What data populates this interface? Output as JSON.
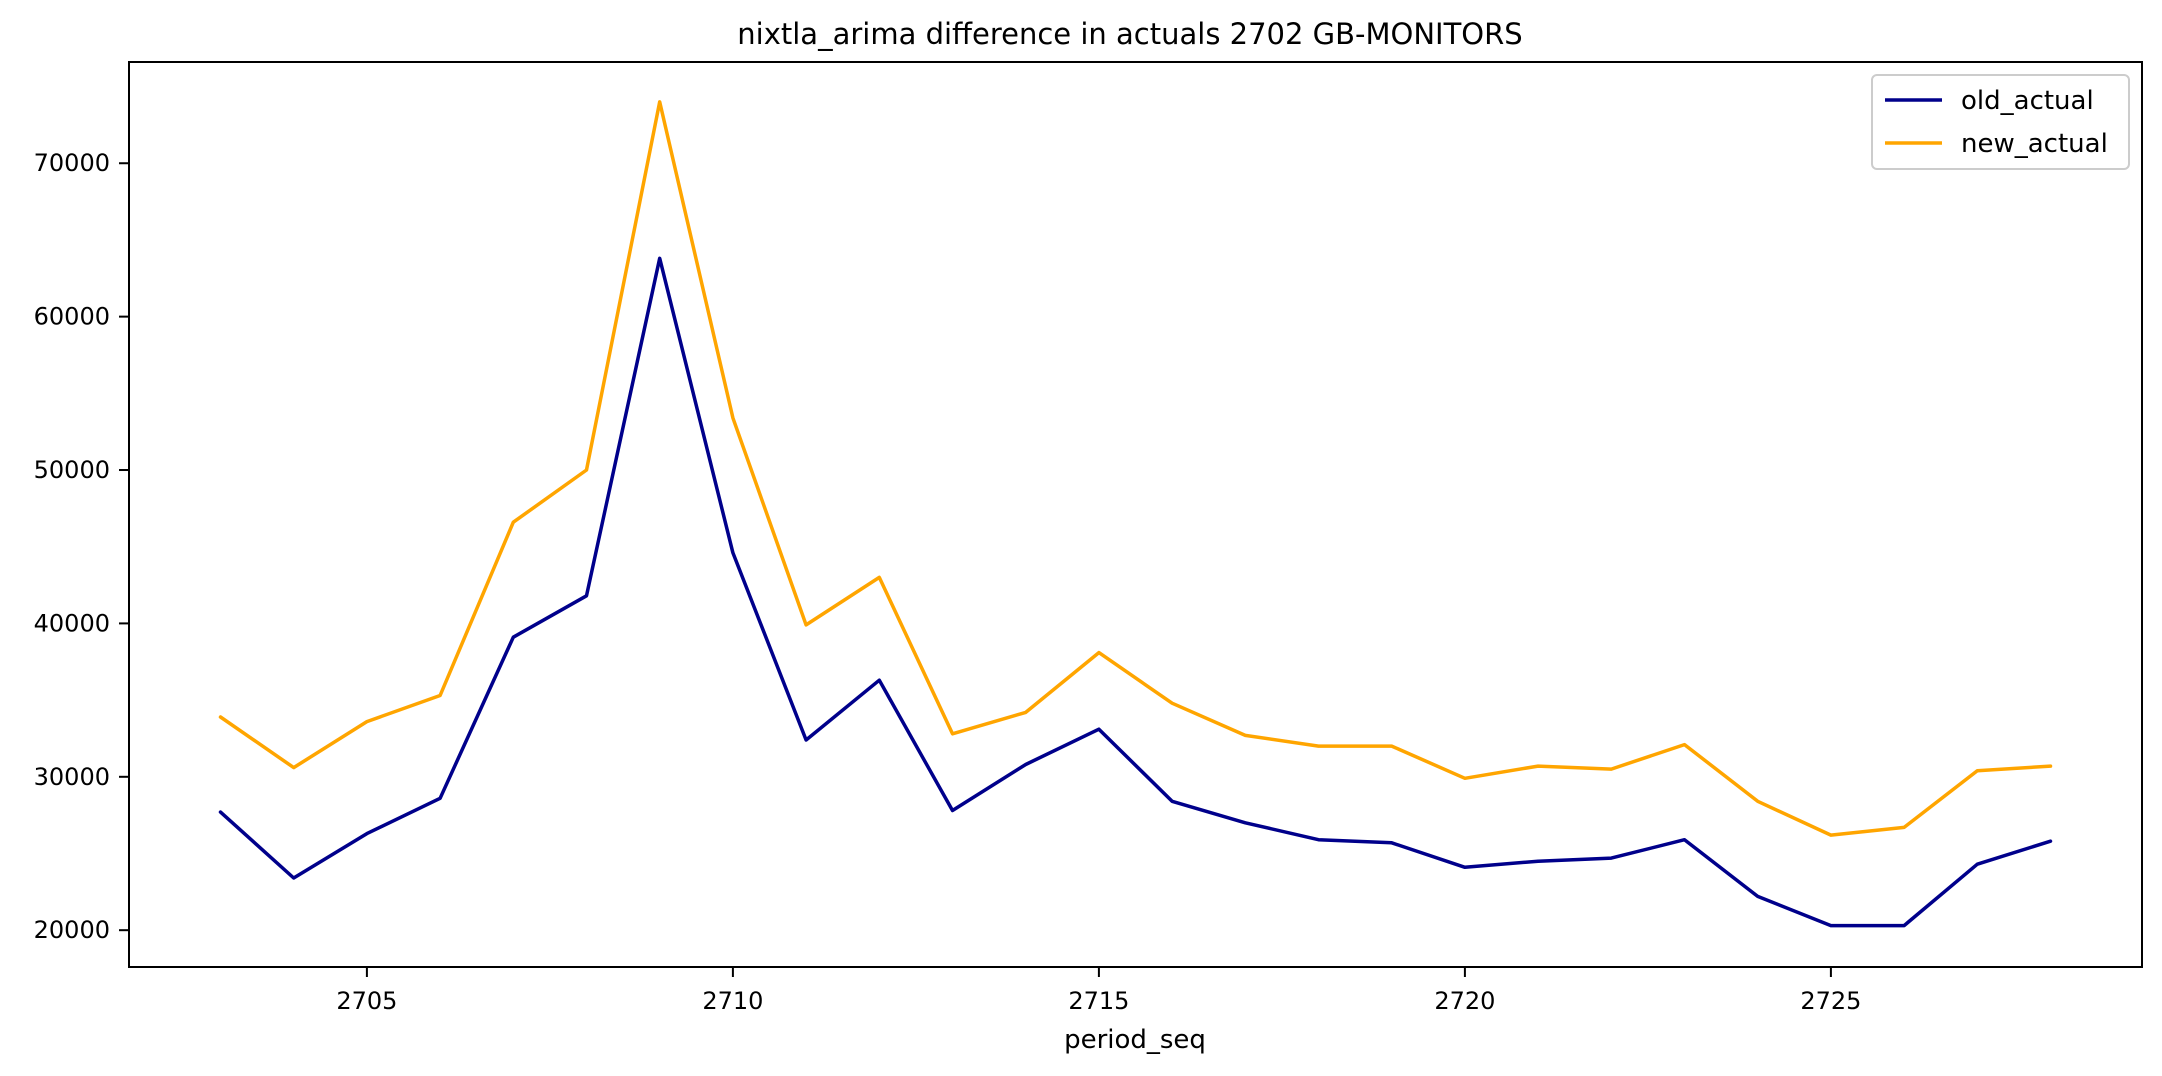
{
  "chart_data": {
    "type": "line",
    "title": "nixtla_arima difference in actuals 2702 GB-MONITORS",
    "xlabel": "period_seq",
    "ylabel": "",
    "x": [
      2703,
      2704,
      2705,
      2706,
      2707,
      2708,
      2709,
      2710,
      2711,
      2712,
      2713,
      2714,
      2715,
      2716,
      2717,
      2718,
      2719,
      2720,
      2721,
      2722,
      2723,
      2724,
      2725,
      2726,
      2727,
      2728
    ],
    "xlim": [
      2701.75,
      2729.25
    ],
    "ylim": [
      17600,
      76600
    ],
    "xticks": [
      2705,
      2710,
      2715,
      2720,
      2725
    ],
    "yticks": [
      20000,
      30000,
      40000,
      50000,
      60000,
      70000
    ],
    "legend_position": "top-right",
    "grid": false,
    "series": [
      {
        "name": "old_actual",
        "color": "#00008b",
        "values": [
          27700,
          23400,
          26300,
          28600,
          39100,
          41800,
          63800,
          44600,
          32400,
          36300,
          27800,
          30800,
          33100,
          28400,
          27000,
          25900,
          25700,
          24100,
          24500,
          24700,
          25900,
          22200,
          20300,
          20300,
          24300,
          25800
        ]
      },
      {
        "name": "new_actual",
        "color": "#ffa500",
        "values": [
          33900,
          30600,
          33600,
          35300,
          46600,
          50000,
          74000,
          53400,
          39900,
          43000,
          32800,
          34200,
          38100,
          34800,
          32700,
          32000,
          32000,
          29900,
          30700,
          30500,
          32100,
          28400,
          26200,
          26700,
          30400,
          30700
        ]
      }
    ]
  }
}
